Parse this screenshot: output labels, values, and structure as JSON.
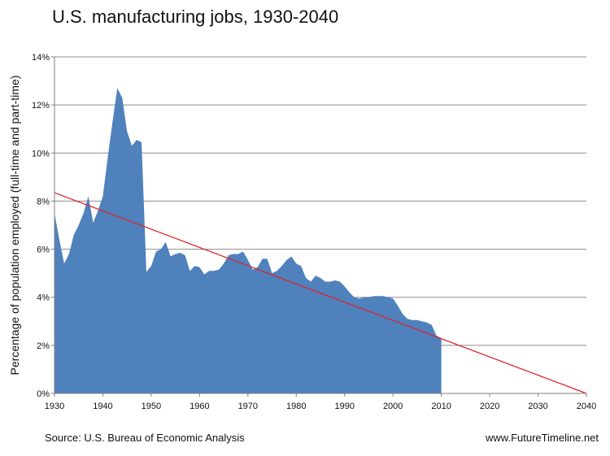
{
  "colors": {
    "area_fill": "#4f81bd",
    "trend_line": "#d9272e",
    "grid": "#8c8c8c",
    "axis": "#7f7f7f"
  },
  "chart_data": {
    "type": "area",
    "title": "U.S. manufacturing jobs, 1930-2040",
    "ylabel": "Percentage of population employed (full-time and part-time)",
    "xlabel": "",
    "xlim": [
      1930,
      2040
    ],
    "ylim": [
      0,
      14
    ],
    "x_ticks": [
      1930,
      1940,
      1950,
      1960,
      1970,
      1980,
      1990,
      2000,
      2010,
      2020,
      2030,
      2040
    ],
    "y_ticks": [
      0,
      2,
      4,
      6,
      8,
      10,
      12,
      14
    ],
    "y_tick_suffix": "%",
    "grid": "horizontal",
    "legend": "none",
    "series": [
      {
        "type": "area",
        "x": [
          1930,
          1931,
          1932,
          1933,
          1934,
          1935,
          1936,
          1937,
          1938,
          1939,
          1940,
          1941,
          1942,
          1943,
          1944,
          1945,
          1946,
          1947,
          1948,
          1949,
          1950,
          1951,
          1952,
          1953,
          1954,
          1955,
          1956,
          1957,
          1958,
          1959,
          1960,
          1961,
          1962,
          1963,
          1964,
          1965,
          1966,
          1967,
          1968,
          1969,
          1970,
          1971,
          1972,
          1973,
          1974,
          1975,
          1976,
          1977,
          1978,
          1979,
          1980,
          1981,
          1982,
          1983,
          1984,
          1985,
          1986,
          1987,
          1988,
          1989,
          1990,
          1991,
          1992,
          1993,
          1994,
          1995,
          1996,
          1997,
          1998,
          1999,
          2000,
          2001,
          2002,
          2003,
          2004,
          2005,
          2006,
          2007,
          2008,
          2009,
          2010
        ],
        "y": [
          7.5,
          6.4,
          5.4,
          5.8,
          6.6,
          7.0,
          7.5,
          8.2,
          7.1,
          7.6,
          8.2,
          9.8,
          11.3,
          12.7,
          12.3,
          10.9,
          10.3,
          10.55,
          10.45,
          5.05,
          5.3,
          5.9,
          6.0,
          6.3,
          5.7,
          5.8,
          5.85,
          5.75,
          5.1,
          5.3,
          5.25,
          4.95,
          5.1,
          5.1,
          5.15,
          5.4,
          5.75,
          5.8,
          5.8,
          5.9,
          5.55,
          5.15,
          5.25,
          5.6,
          5.6,
          5.0,
          5.1,
          5.3,
          5.55,
          5.7,
          5.4,
          5.3,
          4.8,
          4.65,
          4.9,
          4.8,
          4.65,
          4.65,
          4.7,
          4.65,
          4.45,
          4.2,
          4.0,
          3.95,
          4.0,
          4.0,
          4.05,
          4.05,
          4.05,
          4.0,
          3.95,
          3.65,
          3.3,
          3.1,
          3.05,
          3.05,
          3.0,
          2.95,
          2.85,
          2.4,
          2.3
        ]
      },
      {
        "type": "line",
        "x": [
          1930,
          2040
        ],
        "y": [
          8.35,
          0
        ]
      }
    ]
  },
  "footer": {
    "source": "Source: U.S. Bureau of Economic Analysis",
    "site": "www.FutureTimeline.net"
  }
}
